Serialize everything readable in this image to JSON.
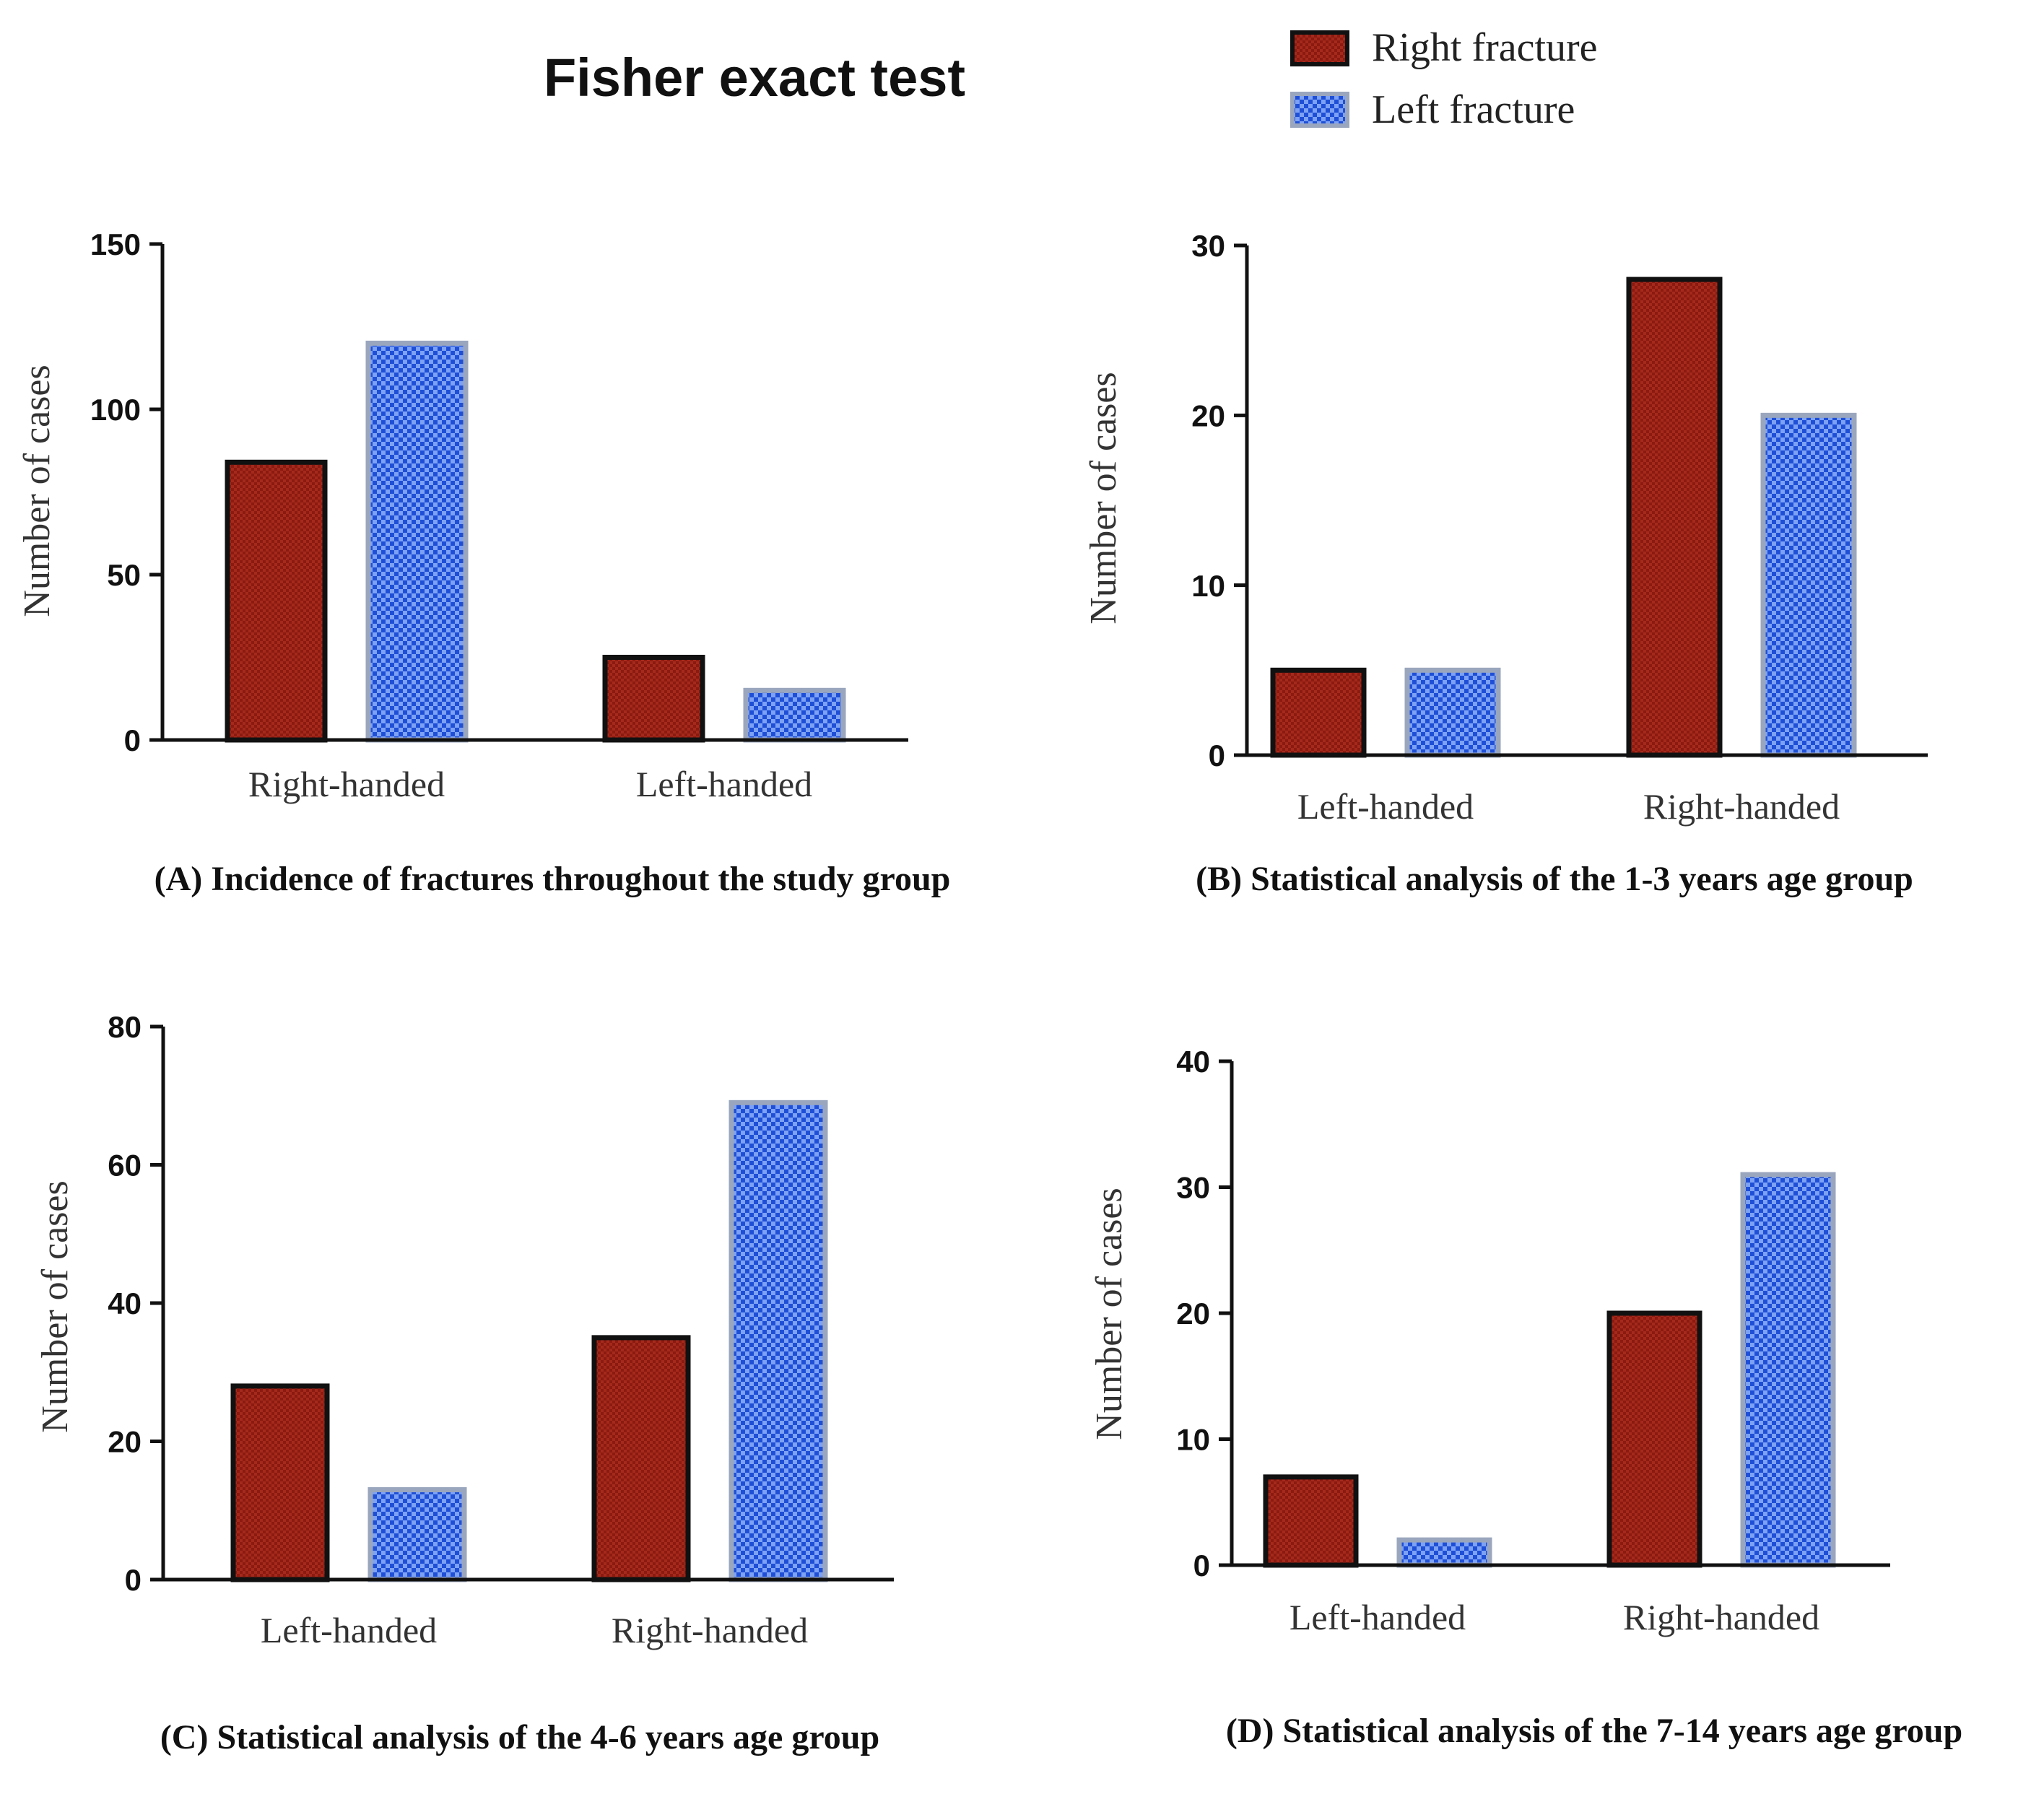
{
  "figure_title": "Fisher exact test",
  "legend": {
    "placement": "top-right",
    "items": [
      {
        "name": "Right fracture",
        "color": "#8b1a10"
      },
      {
        "name": "Left fracture",
        "color": "#1f4fd6"
      }
    ]
  },
  "chart_data": [
    {
      "type": "bar",
      "title": "(A) Incidence of fractures throughout the study group",
      "ylabel": "Number of cases",
      "xlabel": "",
      "categories": [
        "Right-handed",
        "Left-handed"
      ],
      "series": [
        {
          "name": "Right fracture",
          "values": [
            84,
            25
          ]
        },
        {
          "name": "Left fracture",
          "values": [
            120,
            15
          ]
        }
      ],
      "ylim": [
        0,
        150
      ],
      "yticks": [
        0,
        50,
        100,
        150
      ],
      "grid": false
    },
    {
      "type": "bar",
      "title": "(B) Statistical analysis of the 1-3 years age group",
      "ylabel": "Number of cases",
      "xlabel": "",
      "categories": [
        "Left-handed",
        "Right-handed"
      ],
      "series": [
        {
          "name": "Right fracture",
          "values": [
            5,
            28
          ]
        },
        {
          "name": "Left fracture",
          "values": [
            5,
            20
          ]
        }
      ],
      "ylim": [
        0,
        30
      ],
      "yticks": [
        0,
        10,
        20,
        30
      ],
      "grid": false
    },
    {
      "type": "bar",
      "title": "(C) Statistical analysis of the 4-6 years age group",
      "ylabel": "Number of cases",
      "xlabel": "",
      "categories": [
        "Left-handed",
        "Right-handed"
      ],
      "series": [
        {
          "name": "Right fracture",
          "values": [
            28,
            35
          ]
        },
        {
          "name": "Left fracture",
          "values": [
            13,
            69
          ]
        }
      ],
      "ylim": [
        0,
        80
      ],
      "yticks": [
        0,
        20,
        40,
        60,
        80
      ],
      "grid": false
    },
    {
      "type": "bar",
      "title": "(D) Statistical analysis of the 7-14 years age group",
      "ylabel": "Number of cases",
      "xlabel": "",
      "categories": [
        "Left-handed",
        "Right-handed"
      ],
      "series": [
        {
          "name": "Right fracture",
          "values": [
            7,
            20
          ]
        },
        {
          "name": "Left fracture",
          "values": [
            2,
            31
          ]
        }
      ],
      "ylim": [
        0,
        40
      ],
      "yticks": [
        0,
        10,
        20,
        30,
        40
      ],
      "grid": false
    }
  ]
}
